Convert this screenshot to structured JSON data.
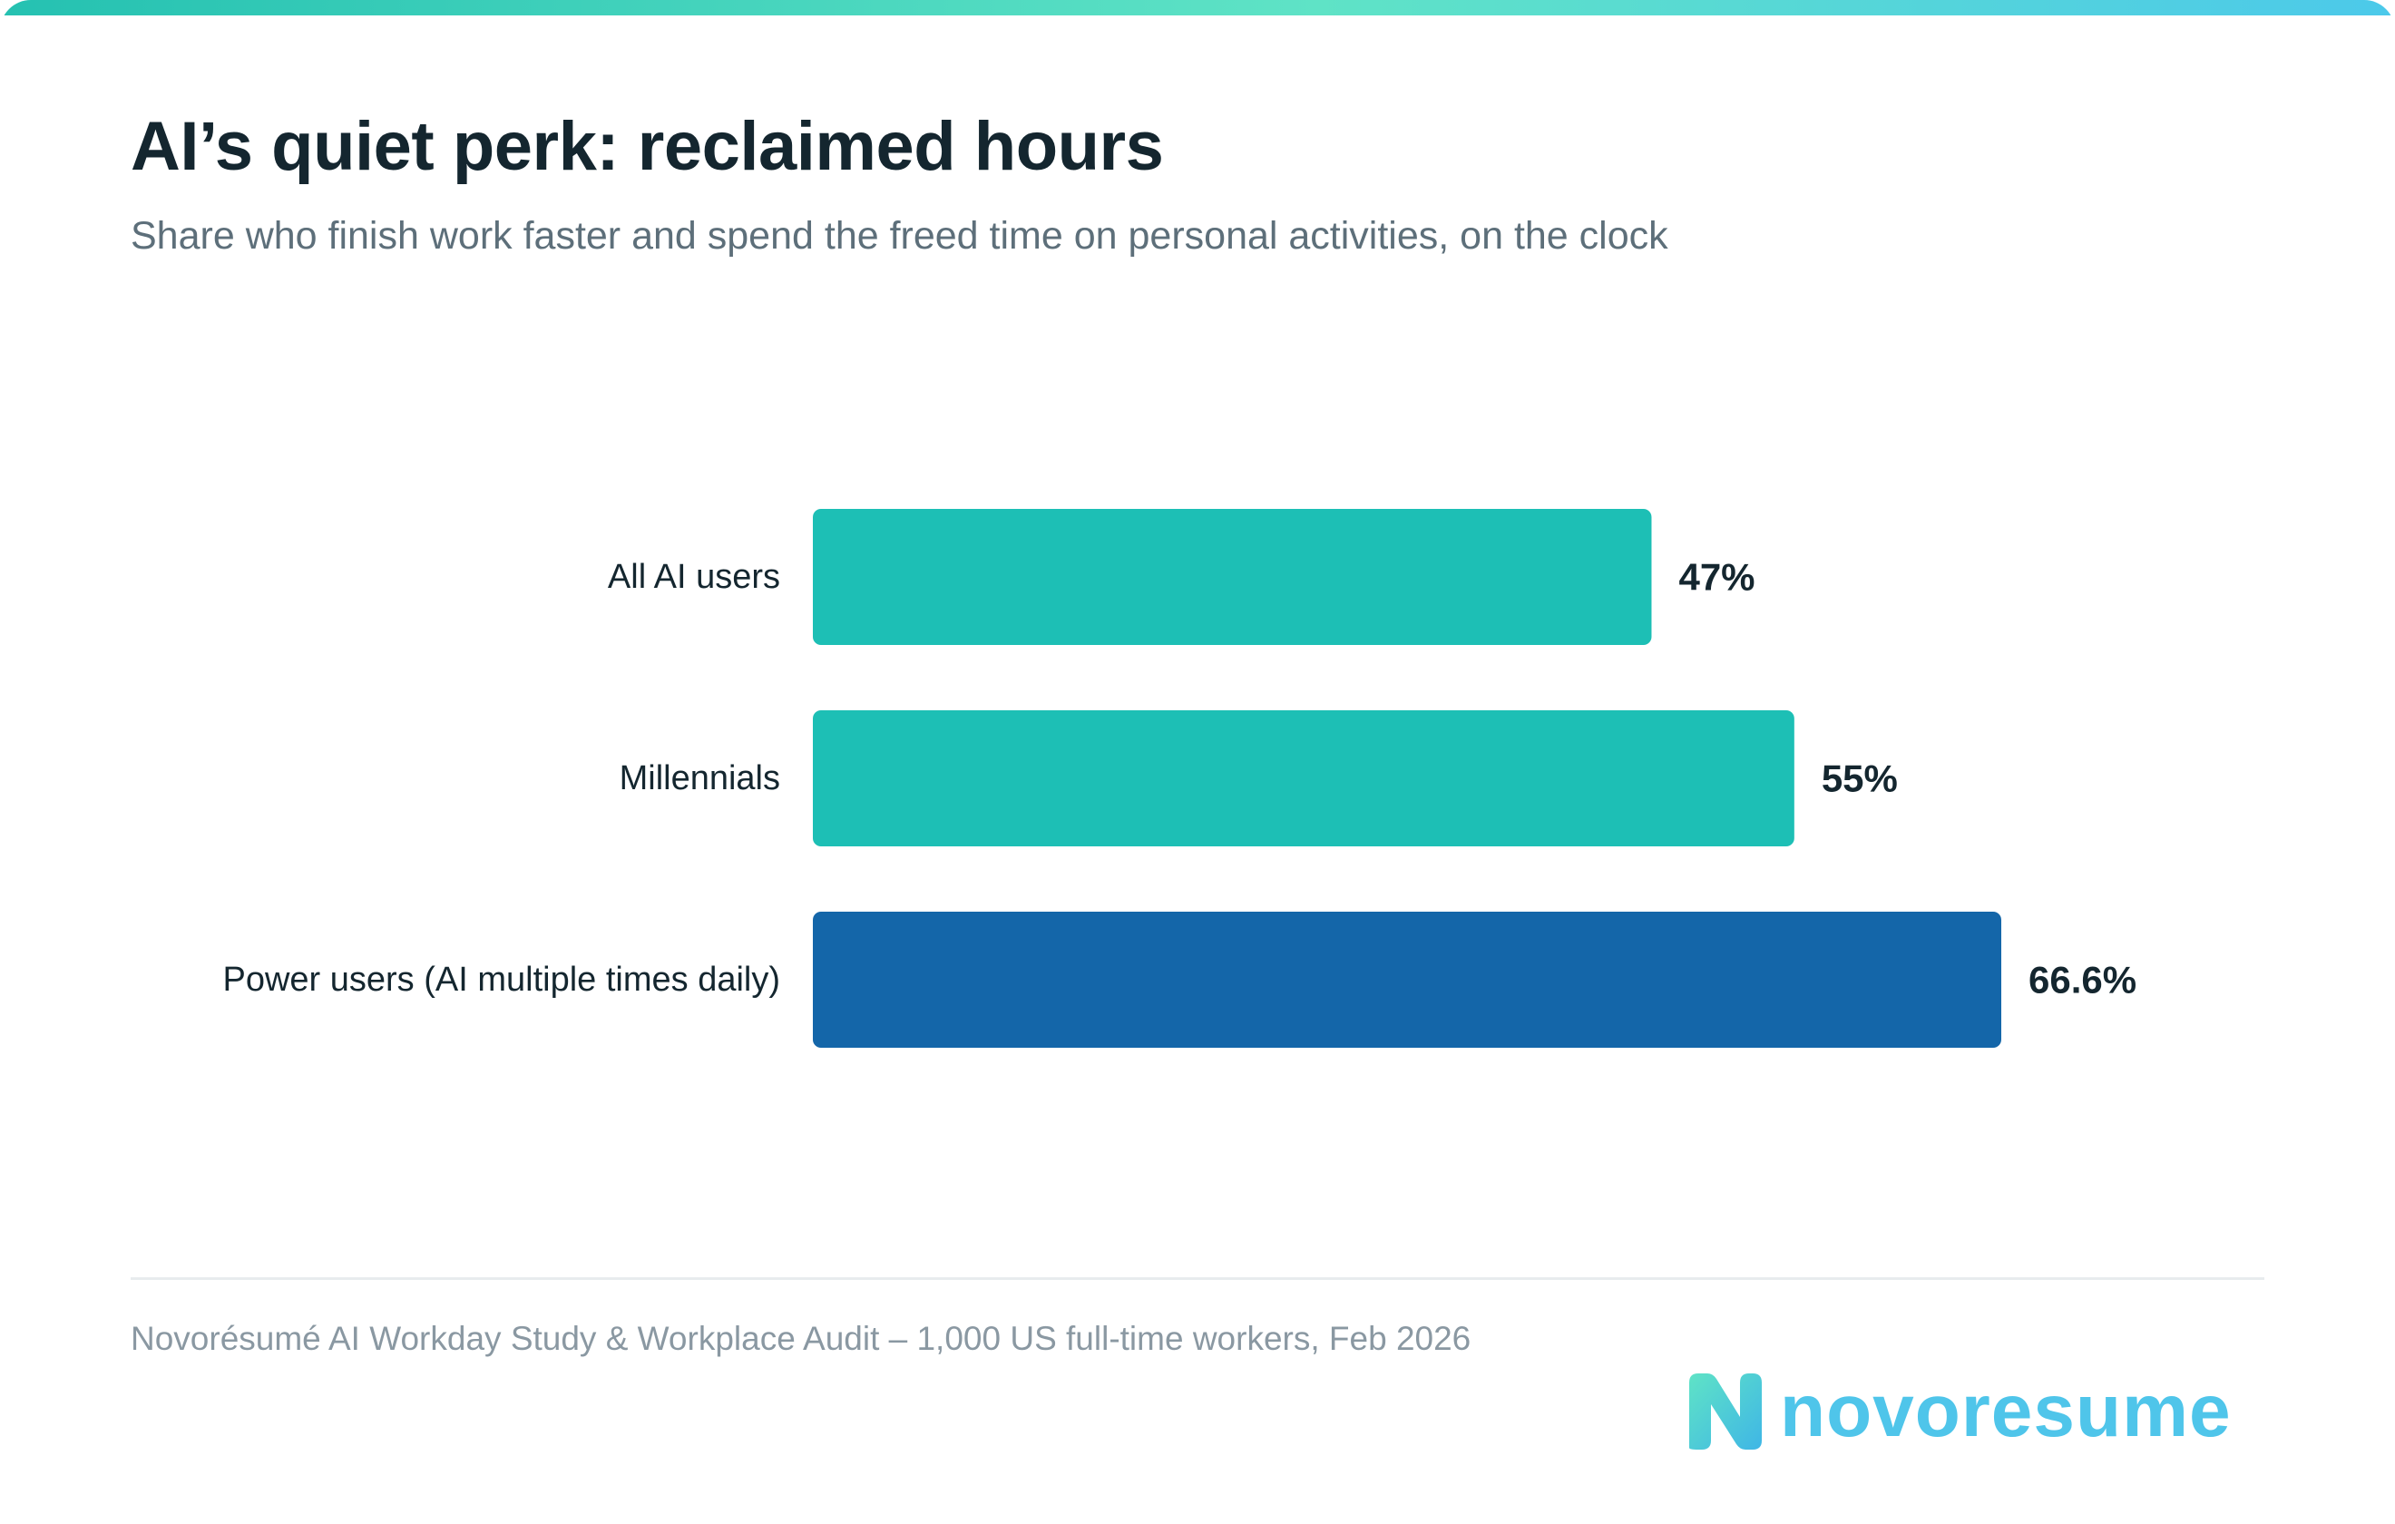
{
  "title": "AI’s quiet perk: reclaimed hours",
  "subtitle": "Share who finish work faster and spend the freed time on personal activities, on the clock",
  "source": "Novorésumé AI Workday Study & Workplace Audit – 1,000 US full-time workers, Feb 2026",
  "brand": {
    "name": "novoresume",
    "logo_icon": "n-logo-icon"
  },
  "colors": {
    "bar_default": "#1dbfb5",
    "bar_highlight": "#1466a9",
    "label_text": "#14262f",
    "value_text": "#14262f",
    "stripe_start": "#25c1b1",
    "stripe_end": "#4cc9ea"
  },
  "chart_data": {
    "type": "bar",
    "orientation": "horizontal",
    "categories": [
      "All AI users",
      "Millennials",
      "Power users (AI multiple times daily)"
    ],
    "values": [
      47,
      55,
      66.6
    ],
    "value_labels": [
      "47%",
      "55%",
      "66.6%"
    ],
    "highlight_index": 2,
    "xlim": [
      0,
      100
    ],
    "grid": false,
    "legend": "none"
  }
}
